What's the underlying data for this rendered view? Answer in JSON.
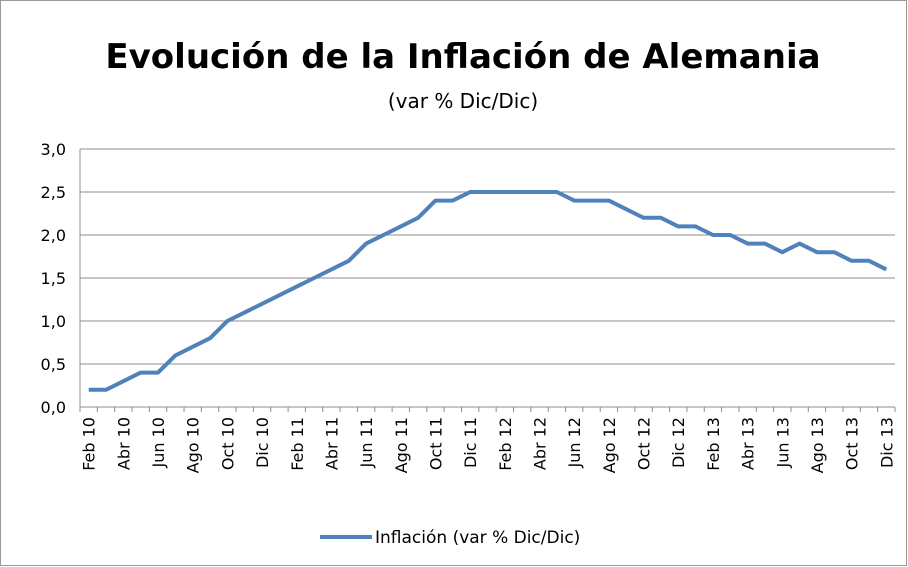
{
  "chart_data": {
    "type": "line",
    "title": "Evolución de la Inflación de Alemania",
    "subtitle": "(var % Dic/Dic)",
    "categories": [
      "Feb 10",
      null,
      "Abr 10",
      null,
      "Jun 10",
      null,
      "Ago 10",
      null,
      "Oct 10",
      null,
      "Dic 10",
      null,
      "Feb 11",
      null,
      "Abr 11",
      null,
      "Jun 11",
      null,
      "Ago 11",
      null,
      "Oct 11",
      null,
      "Dic 11",
      null,
      "Feb 12",
      null,
      "Abr 12",
      null,
      "Jun 12",
      null,
      "Ago 12",
      null,
      "Oct 12",
      null,
      "Dic 12",
      null,
      "Feb 13",
      null,
      "Abr 13",
      null,
      "Jun 13",
      null,
      "Ago 13",
      null,
      "Oct 13",
      null,
      "Dic 13"
    ],
    "series": [
      {
        "name": "Inflación (var % Dic/Dic)",
        "color": "#4f81bd",
        "values": [
          0.2,
          0.2,
          0.3,
          0.4,
          0.4,
          0.6,
          0.7,
          0.8,
          1.0,
          1.1,
          1.2,
          1.3,
          1.4,
          1.5,
          1.6,
          1.7,
          1.9,
          2.0,
          2.1,
          2.2,
          2.4,
          2.4,
          2.5,
          2.5,
          2.5,
          2.5,
          2.5,
          2.5,
          2.4,
          2.4,
          2.4,
          2.3,
          2.2,
          2.2,
          2.1,
          2.1,
          2.0,
          2.0,
          1.9,
          1.9,
          1.8,
          1.9,
          1.8,
          1.8,
          1.7,
          1.7,
          1.6
        ]
      }
    ],
    "ylim": [
      0,
      3
    ],
    "yticks": [
      {
        "value": 0,
        "label": "0,0"
      },
      {
        "value": 0.5,
        "label": "0,5"
      },
      {
        "value": 1,
        "label": "1,0"
      },
      {
        "value": 1.5,
        "label": "1,5"
      },
      {
        "value": 2,
        "label": "2,0"
      },
      {
        "value": 2.5,
        "label": "2,5"
      },
      {
        "value": 3,
        "label": "3,0"
      }
    ],
    "grid": true,
    "legend": "bottom"
  }
}
